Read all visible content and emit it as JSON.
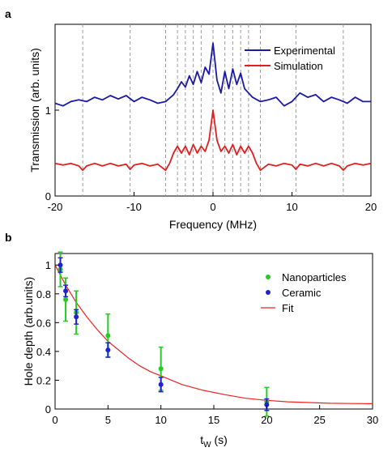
{
  "chart_data": [
    {
      "panel_label": "a",
      "type": "line",
      "xlabel": "Frequency (MHz)",
      "ylabel": "Transmission (arb. units)",
      "xlim": [
        -20,
        20
      ],
      "ylim": [
        0,
        2.0
      ],
      "xticks": [
        -20,
        -10,
        0,
        10,
        20
      ],
      "yticks": [
        0,
        1
      ],
      "grid": false,
      "legend_position": "top-right",
      "reference_lines_x": [
        -16.5,
        -10.5,
        -6,
        -4.5,
        -3.5,
        -2.5,
        -1.5,
        0,
        1.5,
        2.5,
        3.5,
        4.5,
        6,
        10.5,
        16.5
      ],
      "series": [
        {
          "name": "Experimental",
          "color": "#1a1aa6",
          "x": [
            -20,
            -19,
            -18,
            -17,
            -16,
            -15,
            -14,
            -13,
            -12,
            -11,
            -10,
            -9,
            -8,
            -7,
            -6,
            -5,
            -4.5,
            -4,
            -3.5,
            -3,
            -2.5,
            -2,
            -1.5,
            -1,
            -0.5,
            0,
            0.5,
            1,
            1.5,
            2,
            2.5,
            3,
            3.5,
            4,
            4.5,
            5,
            6,
            7,
            8,
            9,
            10,
            11,
            12,
            13,
            14,
            15,
            16,
            17,
            18,
            19,
            20
          ],
          "y": [
            1.08,
            1.05,
            1.1,
            1.12,
            1.1,
            1.15,
            1.12,
            1.17,
            1.13,
            1.17,
            1.1,
            1.15,
            1.12,
            1.08,
            1.1,
            1.18,
            1.25,
            1.33,
            1.27,
            1.4,
            1.3,
            1.45,
            1.32,
            1.5,
            1.42,
            1.78,
            1.35,
            1.2,
            1.45,
            1.25,
            1.48,
            1.3,
            1.43,
            1.25,
            1.2,
            1.15,
            1.1,
            1.12,
            1.15,
            1.05,
            1.1,
            1.2,
            1.15,
            1.18,
            1.1,
            1.15,
            1.12,
            1.08,
            1.15,
            1.1,
            1.1
          ]
        },
        {
          "name": "Simulation",
          "color": "#e02020",
          "x": [
            -20,
            -19,
            -18,
            -17,
            -16.5,
            -16,
            -15,
            -14,
            -13,
            -12,
            -11,
            -10.5,
            -10,
            -9,
            -8,
            -7,
            -6,
            -5.5,
            -5,
            -4.5,
            -4,
            -3.5,
            -3,
            -2.5,
            -2,
            -1.5,
            -1,
            -0.5,
            0,
            0.5,
            1,
            1.5,
            2,
            2.5,
            3,
            3.5,
            4,
            4.5,
            5,
            5.5,
            6,
            7,
            8,
            9,
            10,
            10.5,
            11,
            12,
            13,
            14,
            15,
            16,
            16.5,
            17,
            18,
            19,
            20
          ],
          "y": [
            0.38,
            0.36,
            0.38,
            0.35,
            0.3,
            0.35,
            0.38,
            0.35,
            0.38,
            0.35,
            0.37,
            0.31,
            0.36,
            0.38,
            0.35,
            0.37,
            0.3,
            0.38,
            0.5,
            0.58,
            0.5,
            0.58,
            0.48,
            0.6,
            0.5,
            0.58,
            0.52,
            0.65,
            1.0,
            0.65,
            0.52,
            0.58,
            0.5,
            0.6,
            0.48,
            0.58,
            0.5,
            0.58,
            0.5,
            0.38,
            0.3,
            0.37,
            0.35,
            0.38,
            0.36,
            0.31,
            0.37,
            0.35,
            0.38,
            0.35,
            0.38,
            0.35,
            0.3,
            0.35,
            0.38,
            0.36,
            0.38
          ]
        }
      ]
    },
    {
      "panel_label": "b",
      "type": "scatter",
      "xlabel": "t",
      "xlabel_subscript": "W",
      "xlabel_unit": " (s)",
      "ylabel": "Hole depth (arb.units)",
      "xlim": [
        0,
        30
      ],
      "ylim": [
        0,
        1.08
      ],
      "xticks": [
        0,
        5,
        10,
        15,
        20,
        25,
        30
      ],
      "yticks": [
        0,
        0.2,
        0.4,
        0.6,
        0.8,
        1
      ],
      "grid": false,
      "legend_position": "top-right",
      "series": [
        {
          "name": "Nanoparticles",
          "color": "#22cc22",
          "marker": "circle",
          "x": [
            0.5,
            1,
            2,
            5,
            10,
            20
          ],
          "y": [
            0.97,
            0.76,
            0.67,
            0.51,
            0.28,
            0.05
          ],
          "err": [
            0.12,
            0.15,
            0.15,
            0.15,
            0.15,
            0.1
          ]
        },
        {
          "name": "Ceramic",
          "color": "#2222cc",
          "marker": "circle",
          "x": [
            0.5,
            1,
            2,
            5,
            10,
            20
          ],
          "y": [
            1.0,
            0.82,
            0.64,
            0.41,
            0.17,
            0.03
          ],
          "err": [
            0.05,
            0.04,
            0.05,
            0.05,
            0.05,
            0.04
          ]
        },
        {
          "name": "Fit",
          "color": "#ee2222",
          "type": "line",
          "x": [
            0,
            1,
            2,
            3,
            4,
            5,
            6,
            7,
            8,
            9,
            10,
            12,
            14,
            16,
            18,
            20,
            22,
            24,
            26,
            28,
            30
          ],
          "y": [
            1.0,
            0.86,
            0.74,
            0.64,
            0.55,
            0.47,
            0.41,
            0.35,
            0.3,
            0.26,
            0.23,
            0.17,
            0.13,
            0.1,
            0.075,
            0.06,
            0.05,
            0.045,
            0.04,
            0.038,
            0.037
          ]
        }
      ]
    }
  ]
}
